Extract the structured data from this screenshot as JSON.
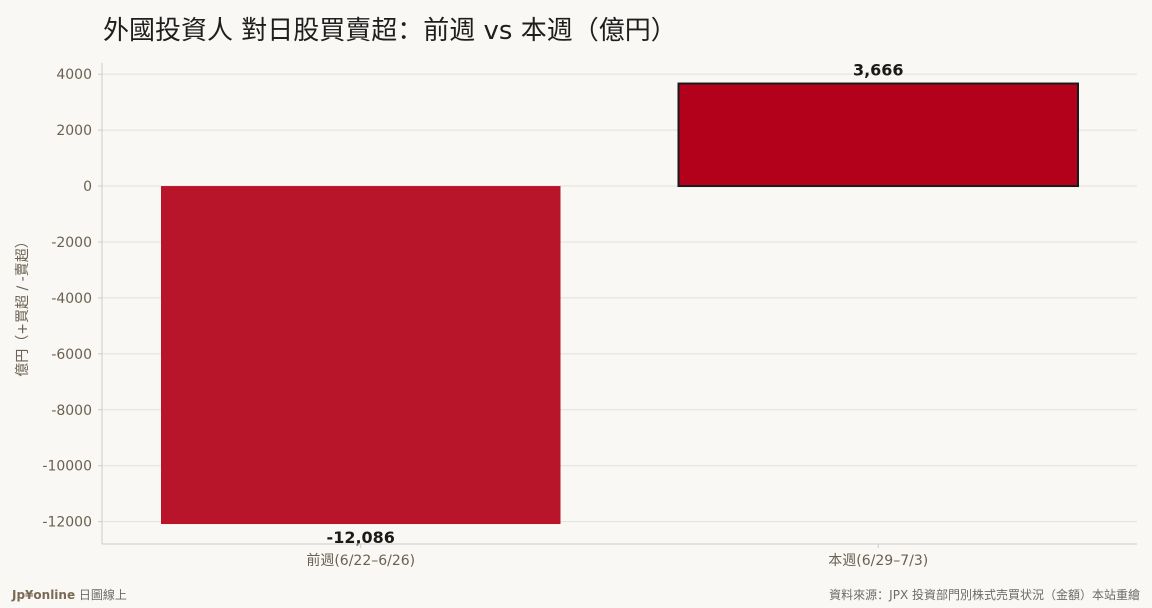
{
  "title": "外國投資人 對日股買賣超：前週 vs 本週（億円）",
  "footer": {
    "brand": "Jp¥online",
    "brand_suffix": " 日圖線上",
    "source": "資料來源：JPX 投資部門別株式売買状況（金額）本站重繪"
  },
  "chart_data": {
    "type": "bar",
    "categories": [
      "前週(6/22–6/26)",
      "本週(6/29–7/3)"
    ],
    "values": [
      -12086,
      3666
    ],
    "value_labels": [
      "-12,086",
      "3,666"
    ],
    "ylabel": "億円（+買超 / -賣超）",
    "ylim": [
      -12800,
      4400
    ],
    "yticks": [
      4000,
      2000,
      0,
      -2000,
      -4000,
      -6000,
      -8000,
      -10000,
      -12000
    ],
    "grid": true,
    "colors": {
      "bar": [
        "#b8152b",
        "#b3001b"
      ],
      "bar_edge": [
        "none",
        "#1a1a1a"
      ],
      "grid": "#e2e0dc",
      "axis": "#cfcbc4",
      "tick_text": "#6b6152",
      "value_text": "#1a1a1a"
    }
  }
}
